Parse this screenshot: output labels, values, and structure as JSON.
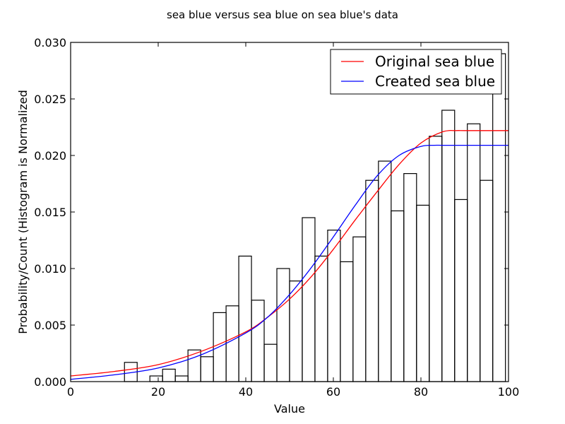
{
  "chart_data": {
    "type": "bar",
    "title": "sea blue versus sea blue on sea blue's data",
    "xlabel": "Value",
    "ylabel": "Probability/Count (Histogram is Normalized",
    "xlim": [
      0,
      100
    ],
    "ylim": [
      0,
      0.03
    ],
    "x_ticks": [
      "0",
      "20",
      "40",
      "60",
      "80",
      "100"
    ],
    "y_ticks": [
      "0.000",
      "0.005",
      "0.010",
      "0.015",
      "0.020",
      "0.025",
      "0.030"
    ],
    "grid": false,
    "legend_position": "top-right",
    "histogram": {
      "bin_width": 2.9,
      "bins": [
        {
          "left": 12.3,
          "value": 0.0017
        },
        {
          "left": 18.1,
          "value": 0.0005
        },
        {
          "left": 21.0,
          "value": 0.0011
        },
        {
          "left": 23.9,
          "value": 0.0005
        },
        {
          "left": 26.8,
          "value": 0.0028
        },
        {
          "left": 29.7,
          "value": 0.0022
        },
        {
          "left": 32.6,
          "value": 0.0061
        },
        {
          "left": 35.5,
          "value": 0.0067
        },
        {
          "left": 38.4,
          "value": 0.0111
        },
        {
          "left": 41.3,
          "value": 0.0072
        },
        {
          "left": 44.2,
          "value": 0.0033
        },
        {
          "left": 47.1,
          "value": 0.01
        },
        {
          "left": 50.0,
          "value": 0.0089
        },
        {
          "left": 52.9,
          "value": 0.0145
        },
        {
          "left": 55.8,
          "value": 0.0111
        },
        {
          "left": 58.7,
          "value": 0.0134
        },
        {
          "left": 61.6,
          "value": 0.0106
        },
        {
          "left": 64.5,
          "value": 0.0128
        },
        {
          "left": 67.4,
          "value": 0.0178
        },
        {
          "left": 70.3,
          "value": 0.0195
        },
        {
          "left": 73.2,
          "value": 0.0151
        },
        {
          "left": 76.1,
          "value": 0.0184
        },
        {
          "left": 79.0,
          "value": 0.0156
        },
        {
          "left": 81.9,
          "value": 0.0217
        },
        {
          "left": 84.8,
          "value": 0.024
        },
        {
          "left": 87.7,
          "value": 0.0161
        },
        {
          "left": 90.6,
          "value": 0.0228
        },
        {
          "left": 93.5,
          "value": 0.0178
        },
        {
          "left": 96.4,
          "value": 0.029
        }
      ]
    },
    "series": [
      {
        "name": "Original sea blue",
        "color": "#ff0000",
        "x": [
          0,
          10,
          20,
          30,
          40,
          45,
          50,
          55,
          60,
          65,
          70,
          75,
          80,
          85,
          88,
          90,
          95,
          100
        ],
        "y": [
          0.0005,
          0.0009,
          0.0015,
          0.0027,
          0.0044,
          0.0057,
          0.0073,
          0.0093,
          0.0117,
          0.0143,
          0.0168,
          0.0192,
          0.0211,
          0.0221,
          0.0222,
          0.0222,
          0.0222,
          0.0222
        ]
      },
      {
        "name": "Created sea blue",
        "color": "#0000ff",
        "x": [
          0,
          10,
          20,
          30,
          40,
          45,
          50,
          55,
          60,
          65,
          70,
          75,
          80,
          83,
          85,
          90,
          95,
          100
        ],
        "y": [
          0.0002,
          0.0006,
          0.0012,
          0.0024,
          0.0043,
          0.0057,
          0.0077,
          0.0101,
          0.0128,
          0.0156,
          0.0182,
          0.02,
          0.0208,
          0.0209,
          0.0209,
          0.0209,
          0.0209,
          0.0209
        ]
      }
    ]
  }
}
